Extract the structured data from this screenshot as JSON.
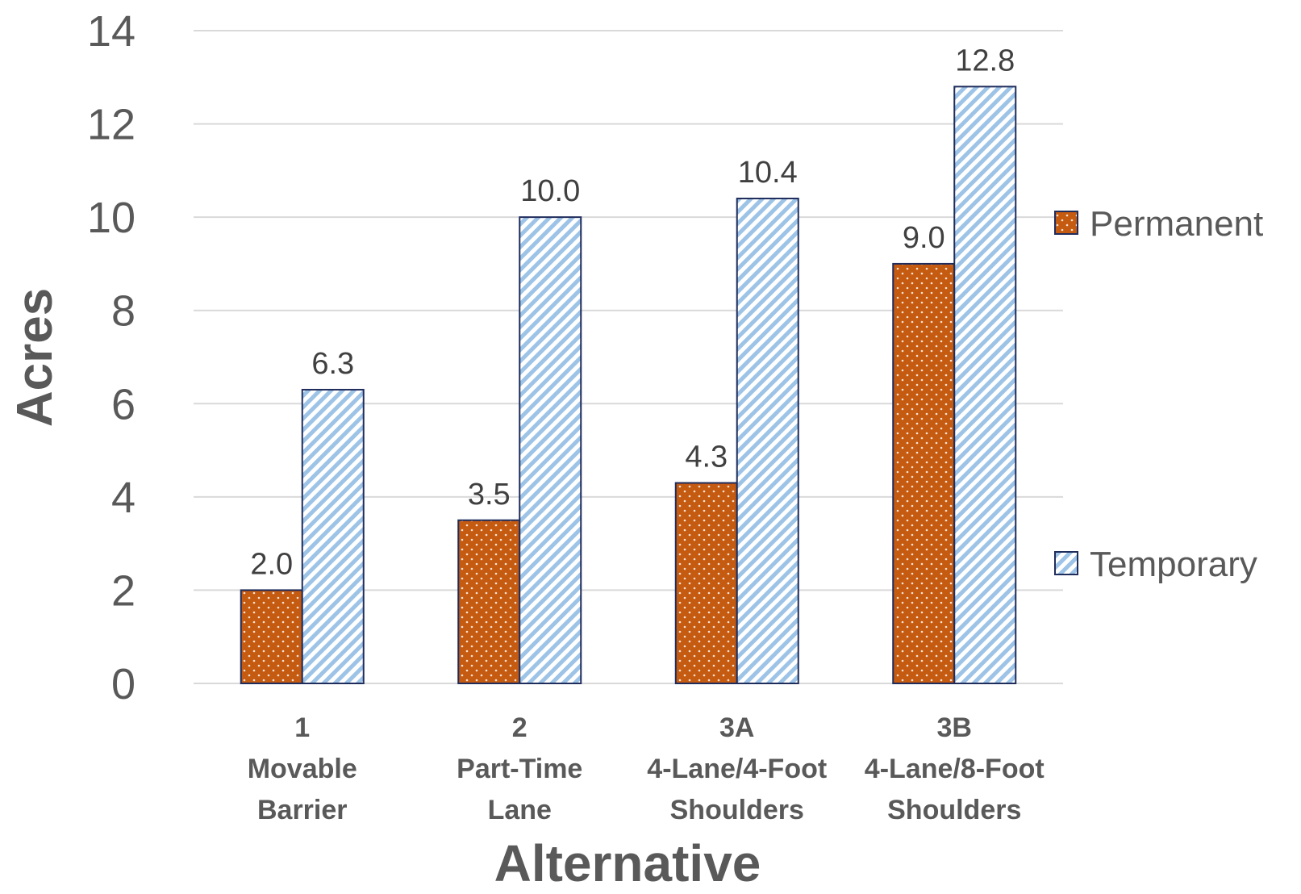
{
  "chart_data": {
    "type": "bar",
    "categories": [
      [
        "1",
        "Movable",
        "Barrier"
      ],
      [
        "2",
        "Part-Time",
        "Lane"
      ],
      [
        "3A",
        "4-Lane/4-Foot",
        "Shoulders"
      ],
      [
        "3B",
        "4-Lane/8-Foot",
        "Shoulders"
      ]
    ],
    "series": [
      {
        "name": "Permanent",
        "values": [
          2.0,
          3.5,
          4.3,
          9.0
        ],
        "labels": [
          "2.0",
          "3.5",
          "4.3",
          "9.0"
        ],
        "color": "#C55A11",
        "pattern": "dots"
      },
      {
        "name": "Temporary",
        "values": [
          6.3,
          10.0,
          10.4,
          12.8
        ],
        "labels": [
          "6.3",
          "10.0",
          "10.4",
          "12.8"
        ],
        "color": "#9DC3E6",
        "pattern": "diagonal-stripes"
      }
    ],
    "xlabel": "Alternative",
    "ylabel": "Acres",
    "ylim": [
      0,
      14
    ],
    "yticks": [
      0,
      2,
      4,
      6,
      8,
      10,
      12,
      14
    ],
    "grid": true,
    "legend_position": "right"
  },
  "colors": {
    "bar_outline": "#1F2D5C",
    "gridline": "#D9D9D9",
    "text": "#595959"
  }
}
